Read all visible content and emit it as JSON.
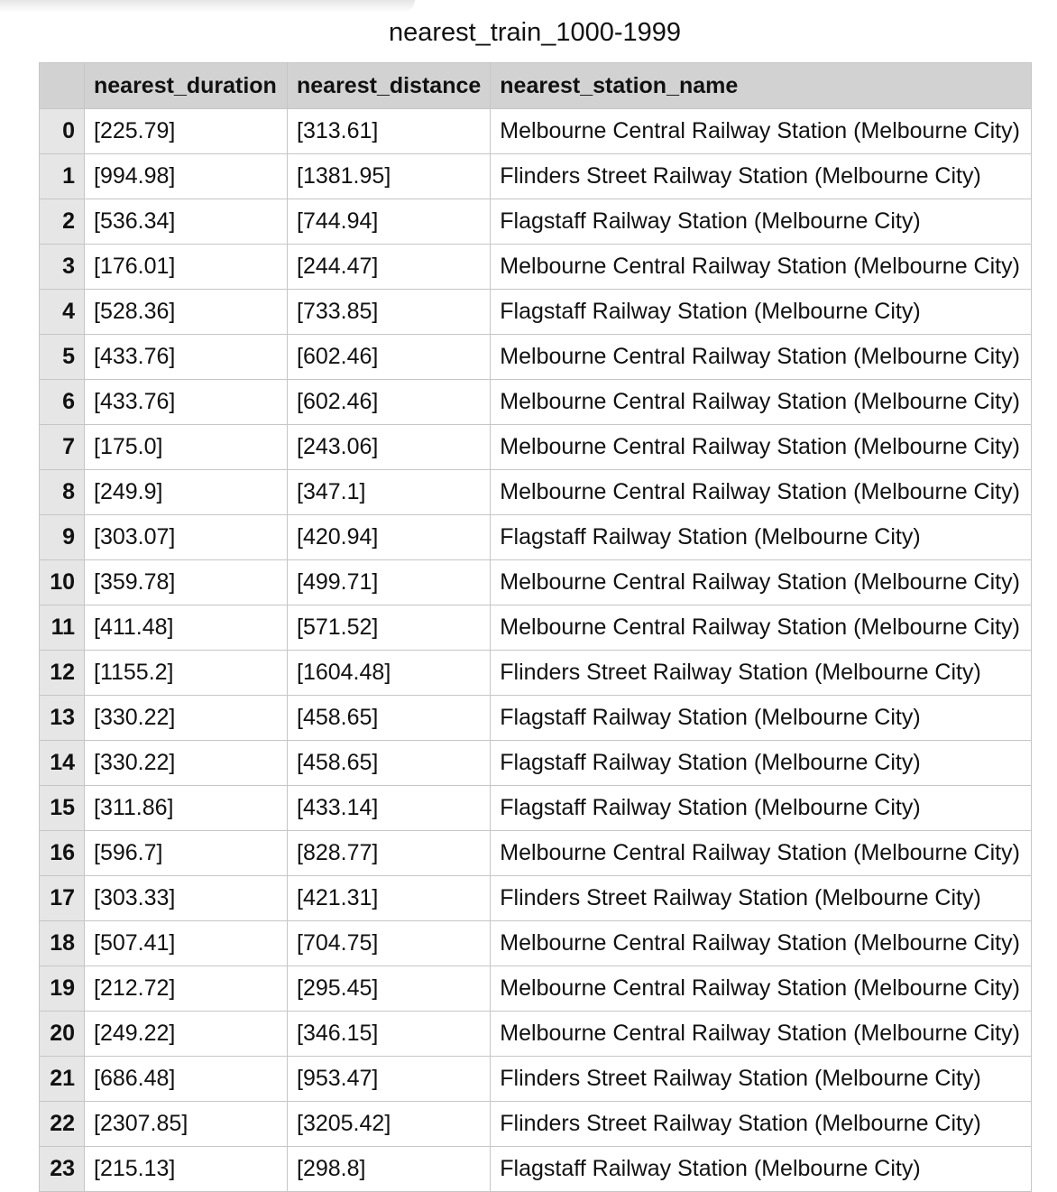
{
  "title": "nearest_train_1000-1999",
  "columns": [
    "",
    "nearest_duration",
    "nearest_distance",
    "nearest_station_name"
  ],
  "rows": [
    {
      "index": "0",
      "duration": "[225.79]",
      "distance": "[313.61]",
      "station": "Melbourne Central Railway Station (Melbourne City)"
    },
    {
      "index": "1",
      "duration": "[994.98]",
      "distance": "[1381.95]",
      "station": "Flinders Street Railway Station (Melbourne City)"
    },
    {
      "index": "2",
      "duration": "[536.34]",
      "distance": "[744.94]",
      "station": "Flagstaff Railway Station (Melbourne City)"
    },
    {
      "index": "3",
      "duration": "[176.01]",
      "distance": "[244.47]",
      "station": "Melbourne Central Railway Station (Melbourne City)"
    },
    {
      "index": "4",
      "duration": "[528.36]",
      "distance": "[733.85]",
      "station": "Flagstaff Railway Station (Melbourne City)"
    },
    {
      "index": "5",
      "duration": "[433.76]",
      "distance": "[602.46]",
      "station": "Melbourne Central Railway Station (Melbourne City)"
    },
    {
      "index": "6",
      "duration": "[433.76]",
      "distance": "[602.46]",
      "station": "Melbourne Central Railway Station (Melbourne City)"
    },
    {
      "index": "7",
      "duration": "[175.0]",
      "distance": "[243.06]",
      "station": "Melbourne Central Railway Station (Melbourne City)"
    },
    {
      "index": "8",
      "duration": "[249.9]",
      "distance": "[347.1]",
      "station": "Melbourne Central Railway Station (Melbourne City)"
    },
    {
      "index": "9",
      "duration": "[303.07]",
      "distance": "[420.94]",
      "station": "Flagstaff Railway Station (Melbourne City)"
    },
    {
      "index": "10",
      "duration": "[359.78]",
      "distance": "[499.71]",
      "station": "Melbourne Central Railway Station (Melbourne City)"
    },
    {
      "index": "11",
      "duration": "[411.48]",
      "distance": "[571.52]",
      "station": "Melbourne Central Railway Station (Melbourne City)"
    },
    {
      "index": "12",
      "duration": "[1155.2]",
      "distance": "[1604.48]",
      "station": "Flinders Street Railway Station (Melbourne City)"
    },
    {
      "index": "13",
      "duration": "[330.22]",
      "distance": "[458.65]",
      "station": "Flagstaff Railway Station (Melbourne City)"
    },
    {
      "index": "14",
      "duration": "[330.22]",
      "distance": "[458.65]",
      "station": "Flagstaff Railway Station (Melbourne City)"
    },
    {
      "index": "15",
      "duration": "[311.86]",
      "distance": "[433.14]",
      "station": "Flagstaff Railway Station (Melbourne City)"
    },
    {
      "index": "16",
      "duration": "[596.7]",
      "distance": "[828.77]",
      "station": "Melbourne Central Railway Station (Melbourne City)"
    },
    {
      "index": "17",
      "duration": "[303.33]",
      "distance": "[421.31]",
      "station": "Flinders Street Railway Station (Melbourne City)"
    },
    {
      "index": "18",
      "duration": "[507.41]",
      "distance": "[704.75]",
      "station": "Melbourne Central Railway Station (Melbourne City)"
    },
    {
      "index": "19",
      "duration": "[212.72]",
      "distance": "[295.45]",
      "station": "Melbourne Central Railway Station (Melbourne City)"
    },
    {
      "index": "20",
      "duration": "[249.22]",
      "distance": "[346.15]",
      "station": "Melbourne Central Railway Station (Melbourne City)"
    },
    {
      "index": "21",
      "duration": "[686.48]",
      "distance": "[953.47]",
      "station": "Flinders Street Railway Station (Melbourne City)"
    },
    {
      "index": "22",
      "duration": "[2307.85]",
      "distance": "[3205.42]",
      "station": "Flinders Street Railway Station (Melbourne City)"
    },
    {
      "index": "23",
      "duration": "[215.13]",
      "distance": "[298.8]",
      "station": "Flagstaff Railway Station (Melbourne City)"
    }
  ]
}
